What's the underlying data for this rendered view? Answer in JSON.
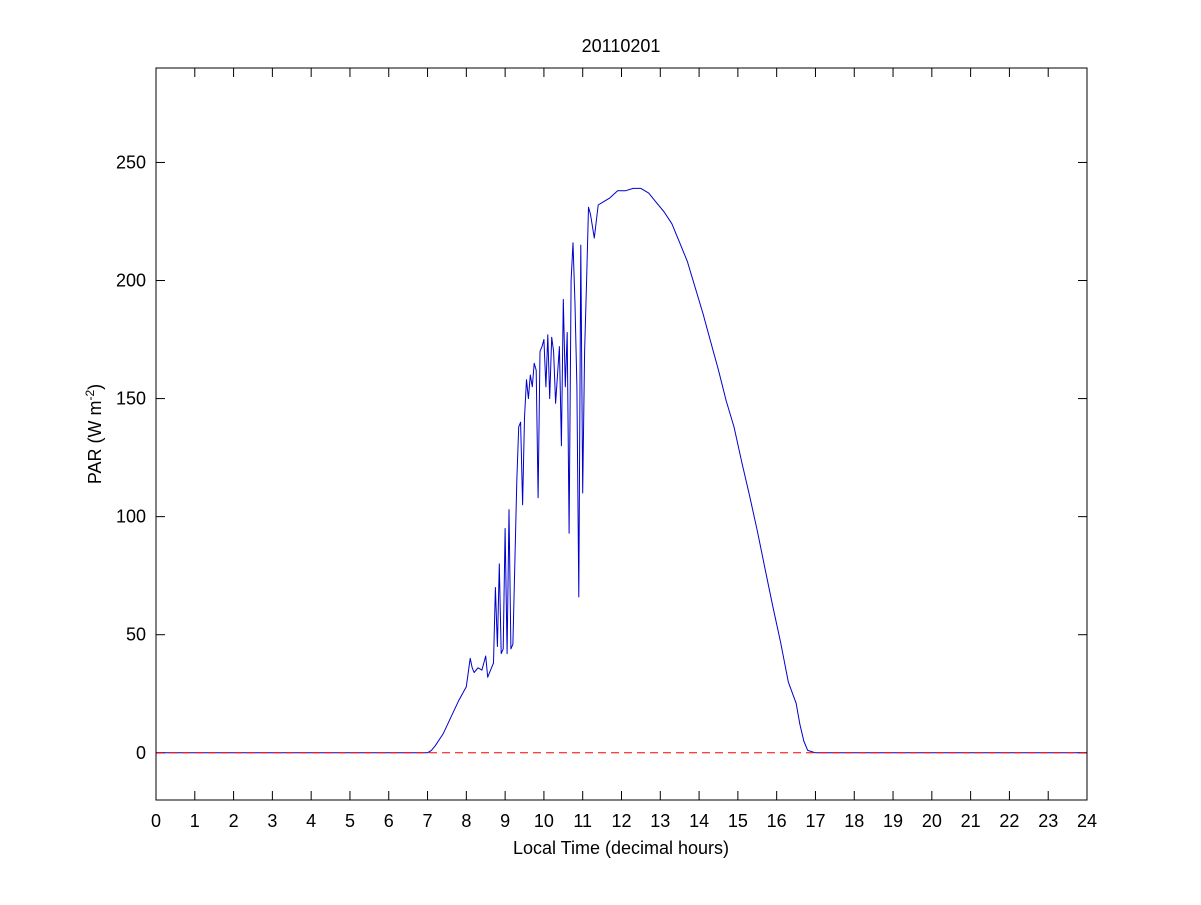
{
  "chart_data": {
    "type": "line",
    "title": "20110201",
    "xlabel": "Local Time (decimal hours)",
    "ylabel": "PAR (W m",
    "ylabel_sup": "-2",
    "ylabel_close": ")",
    "xlim": [
      0,
      24
    ],
    "ylim": [
      -20,
      290
    ],
    "xticks": [
      0,
      1,
      2,
      3,
      4,
      5,
      6,
      7,
      8,
      9,
      10,
      11,
      12,
      13,
      14,
      15,
      16,
      17,
      18,
      19,
      20,
      21,
      22,
      23,
      24
    ],
    "yticks": [
      0,
      50,
      100,
      150,
      200,
      250
    ],
    "grid": false,
    "legend": "none",
    "series": [
      {
        "color": "#0000cc",
        "style": "solid",
        "x": [
          0,
          7.0,
          7.1,
          7.2,
          7.4,
          7.6,
          7.8,
          8.0,
          8.1,
          8.15,
          8.2,
          8.3,
          8.4,
          8.5,
          8.55,
          8.6,
          8.7,
          8.75,
          8.8,
          8.85,
          8.9,
          8.95,
          9.0,
          9.05,
          9.1,
          9.15,
          9.2,
          9.3,
          9.35,
          9.4,
          9.45,
          9.5,
          9.55,
          9.6,
          9.65,
          9.7,
          9.75,
          9.8,
          9.85,
          9.9,
          9.95,
          10.0,
          10.05,
          10.1,
          10.15,
          10.2,
          10.25,
          10.3,
          10.35,
          10.4,
          10.45,
          10.5,
          10.55,
          10.6,
          10.65,
          10.7,
          10.75,
          10.8,
          10.85,
          10.9,
          10.95,
          11.0,
          11.05,
          11.1,
          11.15,
          11.2,
          11.3,
          11.4,
          11.5,
          11.7,
          11.9,
          12.1,
          12.3,
          12.5,
          12.7,
          12.9,
          13.1,
          13.3,
          13.5,
          13.7,
          13.9,
          14.1,
          14.3,
          14.5,
          14.7,
          14.9,
          15.1,
          15.3,
          15.5,
          15.7,
          15.9,
          16.1,
          16.3,
          16.5,
          16.6,
          16.7,
          16.8,
          17.0,
          17.2,
          17.4,
          17.6,
          17.8,
          18.0,
          24
        ],
        "y": [
          0,
          0,
          1,
          3,
          8,
          15,
          22,
          28,
          40,
          36,
          34,
          36,
          35,
          41,
          32,
          34,
          38,
          70,
          45,
          80,
          42,
          44,
          95,
          42,
          103,
          44,
          46,
          115,
          138,
          140,
          105,
          142,
          158,
          150,
          160,
          155,
          165,
          162,
          108,
          170,
          172,
          175,
          155,
          177,
          150,
          176,
          170,
          148,
          160,
          172,
          130,
          192,
          155,
          178,
          93,
          200,
          216,
          190,
          155,
          66,
          215,
          110,
          170,
          200,
          231,
          228,
          218,
          232,
          233,
          235,
          238,
          238,
          239,
          239,
          237,
          233,
          229,
          224,
          216,
          208,
          197,
          186,
          174,
          162,
          149,
          138,
          123,
          109,
          94,
          78,
          62,
          47,
          30,
          21,
          12,
          5,
          1,
          0,
          0,
          0,
          0,
          0,
          0,
          0
        ]
      },
      {
        "color": "#ff0000",
        "style": "dashed",
        "x": [
          0,
          24
        ],
        "y": [
          0,
          0
        ]
      }
    ]
  }
}
